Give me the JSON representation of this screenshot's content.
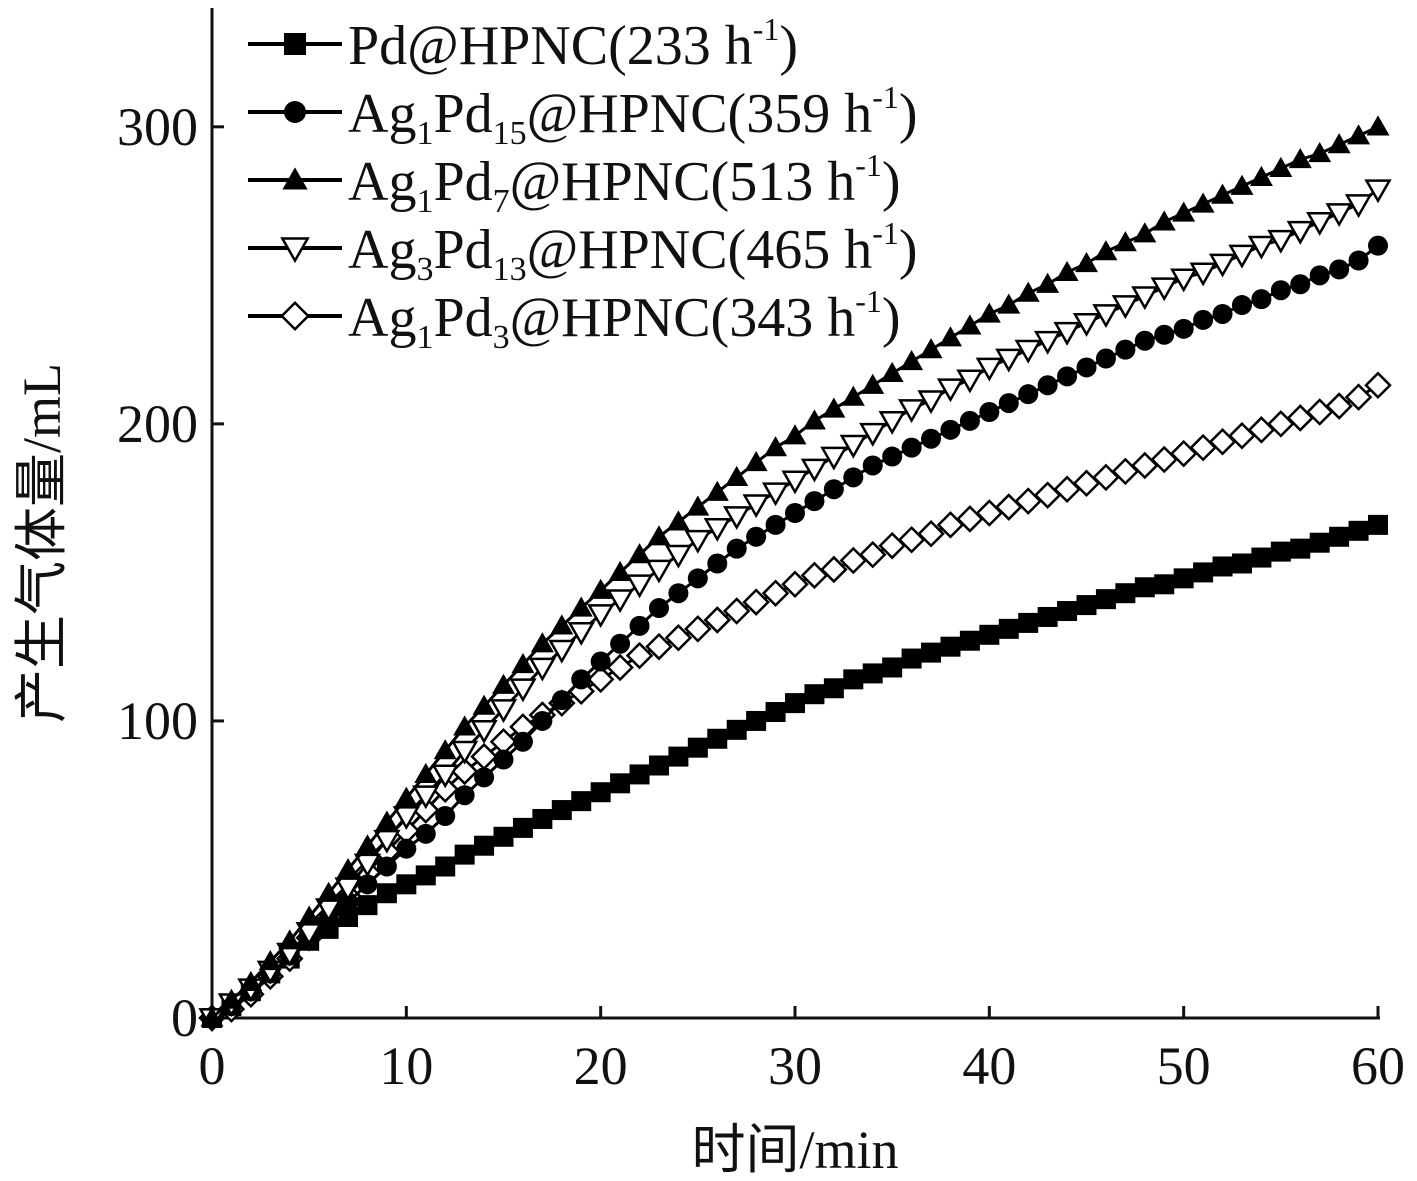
{
  "chart_data": {
    "type": "line",
    "xlabel": "时间/min",
    "ylabel": "产生气体量/mL",
    "xlim": [
      0,
      60
    ],
    "ylim": [
      0,
      340
    ],
    "xticks": [
      0,
      10,
      20,
      30,
      40,
      50,
      60
    ],
    "yticks": [
      0,
      100,
      200,
      300
    ],
    "xtick_labels": [
      "0",
      "10",
      "20",
      "30",
      "40",
      "50",
      "60"
    ],
    "ytick_labels": [
      "0",
      "100",
      "200",
      "300"
    ],
    "grid": false,
    "legend_position": "top-left",
    "x": [
      0,
      1,
      2,
      3,
      4,
      5,
      6,
      7,
      8,
      9,
      10,
      11,
      12,
      13,
      14,
      15,
      16,
      17,
      18,
      19,
      20,
      21,
      22,
      23,
      24,
      25,
      26,
      27,
      28,
      29,
      30,
      31,
      32,
      33,
      34,
      35,
      36,
      37,
      38,
      39,
      40,
      41,
      42,
      43,
      44,
      45,
      46,
      47,
      48,
      49,
      50,
      51,
      52,
      53,
      54,
      55,
      56,
      57,
      58,
      59,
      60
    ],
    "series": [
      {
        "name": "Pd@HPNC(233 h-1)",
        "legend_parts": [
          [
            "Pd@HPNC(233 h",
            ""
          ],
          [
            "-1",
            "sup"
          ],
          [
            ")",
            ""
          ]
        ],
        "marker": "square-filled",
        "color": "#000000",
        "values": [
          0,
          4,
          9,
          15,
          20,
          26,
          30,
          34,
          38,
          42,
          45,
          48,
          51,
          55,
          58,
          61,
          64,
          67,
          70,
          73,
          76,
          79,
          82,
          85,
          88,
          91,
          94,
          97,
          100,
          103,
          106,
          109,
          111,
          114,
          116,
          118,
          121,
          123,
          125,
          127,
          129,
          131,
          133,
          135,
          137,
          139,
          141,
          143,
          145,
          146,
          148,
          150,
          152,
          153,
          155,
          157,
          158,
          160,
          162,
          164,
          166
        ]
      },
      {
        "name": "Ag1Pd15@HPNC(359 h-1)",
        "legend_parts": [
          [
            "Ag",
            ""
          ],
          [
            "1",
            "sub"
          ],
          [
            "Pd",
            ""
          ],
          [
            "15",
            "sub"
          ],
          [
            "@HPNC(359 h",
            ""
          ],
          [
            "-1",
            "sup"
          ],
          [
            ")",
            ""
          ]
        ],
        "marker": "circle-filled",
        "color": "#000000",
        "values": [
          0,
          4,
          9,
          15,
          21,
          27,
          33,
          39,
          45,
          51,
          57,
          62,
          68,
          75,
          81,
          87,
          93,
          100,
          107,
          114,
          120,
          126,
          132,
          138,
          143,
          148,
          153,
          158,
          162,
          166,
          170,
          174,
          178,
          182,
          186,
          189,
          192,
          195,
          198,
          201,
          204,
          207,
          210,
          213,
          216,
          219,
          222,
          225,
          228,
          230,
          232,
          235,
          237,
          240,
          242,
          245,
          247,
          250,
          252,
          255,
          260
        ]
      },
      {
        "name": "Ag1Pd7@HPNC(513 h-1)",
        "legend_parts": [
          [
            "Ag",
            ""
          ],
          [
            "1",
            "sub"
          ],
          [
            "Pd",
            ""
          ],
          [
            "7",
            "sub"
          ],
          [
            "@HPNC(513 h",
            ""
          ],
          [
            "-1",
            "sup"
          ],
          [
            ")",
            ""
          ]
        ],
        "marker": "triangle-up-filled",
        "color": "#000000",
        "values": [
          0,
          6,
          12,
          19,
          26,
          34,
          42,
          50,
          58,
          66,
          74,
          82,
          90,
          98,
          105,
          112,
          119,
          126,
          132,
          138,
          144,
          150,
          156,
          162,
          167,
          172,
          177,
          182,
          187,
          192,
          196,
          201,
          205,
          209,
          213,
          217,
          221,
          225,
          229,
          233,
          237,
          240,
          244,
          247,
          251,
          254,
          258,
          261,
          264,
          268,
          271,
          274,
          277,
          280,
          283,
          286,
          289,
          291,
          294,
          297,
          300
        ]
      },
      {
        "name": "Ag3Pd13@HPNC(465 h-1)",
        "legend_parts": [
          [
            "Ag",
            ""
          ],
          [
            "3",
            "sub"
          ],
          [
            "Pd",
            ""
          ],
          [
            "13",
            "sub"
          ],
          [
            "@HPNC(465 h",
            ""
          ],
          [
            "-1",
            "sup"
          ],
          [
            ")",
            ""
          ]
        ],
        "marker": "triangle-down-open",
        "color": "#000000",
        "values": [
          0,
          5,
          10,
          16,
          22,
          29,
          37,
          44,
          52,
          60,
          68,
          75,
          82,
          90,
          97,
          104,
          111,
          118,
          124,
          130,
          136,
          141,
          146,
          151,
          156,
          161,
          165,
          169,
          173,
          177,
          181,
          185,
          189,
          193,
          197,
          201,
          205,
          208,
          212,
          215,
          219,
          222,
          225,
          228,
          231,
          234,
          237,
          240,
          243,
          246,
          249,
          251,
          254,
          257,
          260,
          262,
          265,
          268,
          271,
          274,
          279
        ]
      },
      {
        "name": "Ag1Pd3@HPNC(343 h-1)",
        "legend_parts": [
          [
            "Ag",
            ""
          ],
          [
            "1",
            "sub"
          ],
          [
            "Pd",
            ""
          ],
          [
            "3",
            "sub"
          ],
          [
            "@HPNC(343 h",
            ""
          ],
          [
            "-1",
            "sup"
          ],
          [
            ")",
            ""
          ]
        ],
        "marker": "diamond-open",
        "color": "#000000",
        "values": [
          0,
          3,
          8,
          14,
          20,
          27,
          34,
          41,
          49,
          56,
          63,
          70,
          77,
          83,
          88,
          93,
          98,
          102,
          106,
          110,
          114,
          118,
          122,
          125,
          128,
          131,
          134,
          137,
          140,
          143,
          146,
          149,
          151,
          154,
          156,
          159,
          161,
          163,
          166,
          168,
          170,
          172,
          174,
          176,
          178,
          180,
          182,
          184,
          186,
          188,
          190,
          192,
          194,
          196,
          198,
          200,
          202,
          204,
          206,
          209,
          213
        ]
      }
    ]
  }
}
